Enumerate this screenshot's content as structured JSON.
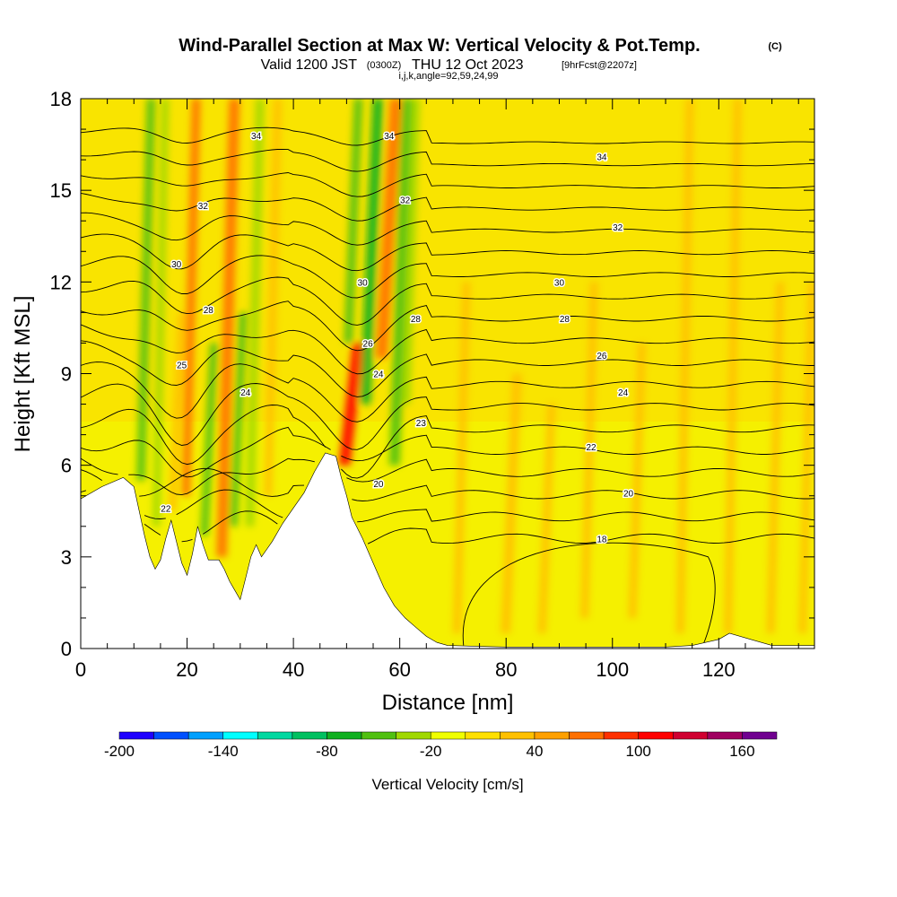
{
  "title": {
    "main": "Wind-Parallel Section at Max W: Vertical Velocity & Pot.Temp.",
    "main_units": "(C)",
    "valid_prefix": "Valid 1200 JST",
    "valid_utc": "(0300Z)",
    "valid_date": "THU 12 Oct 2023",
    "forecast": "[9hrFcst@2207z]",
    "indices": "i,j,k,angle=92,59,24,99"
  },
  "chart_data": {
    "type": "heatmap",
    "xlabel": "Distance [nm]",
    "ylabel": "Height [Kft MSL]",
    "xlim": [
      0,
      138
    ],
    "ylim": [
      0,
      18
    ],
    "x_ticks": [
      0,
      20,
      40,
      60,
      80,
      100,
      120
    ],
    "y_ticks": [
      0,
      3,
      6,
      9,
      12,
      15,
      18
    ],
    "colorbar": {
      "label": "Vertical Velocity [cm/s]",
      "range": [
        -200,
        180
      ],
      "step": 20,
      "tick_labels": [
        -200,
        -140,
        -80,
        -20,
        40,
        100,
        160
      ],
      "colors": [
        "#1e00ff",
        "#0050ff",
        "#00a0ff",
        "#00ffff",
        "#00d8a0",
        "#00c060",
        "#10b020",
        "#50c010",
        "#a0d800",
        "#f0ff00",
        "#ffe000",
        "#ffc000",
        "#ffa000",
        "#ff7000",
        "#ff3000",
        "#ff0000",
        "#d00030",
        "#a00060",
        "#700090"
      ]
    },
    "terrain_profile": [
      [
        0,
        4.9
      ],
      [
        4,
        5.3
      ],
      [
        8,
        5.6
      ],
      [
        10,
        5.3
      ],
      [
        11,
        4.5
      ],
      [
        12,
        3.7
      ],
      [
        13,
        3.0
      ],
      [
        14,
        2.6
      ],
      [
        15,
        2.9
      ],
      [
        16,
        3.6
      ],
      [
        17,
        4.2
      ],
      [
        18,
        3.5
      ],
      [
        19,
        2.8
      ],
      [
        20,
        2.4
      ],
      [
        21,
        3.1
      ],
      [
        22,
        4.0
      ],
      [
        23,
        3.4
      ],
      [
        24,
        2.9
      ],
      [
        26,
        2.9
      ],
      [
        27,
        2.6
      ],
      [
        28,
        2.2
      ],
      [
        29,
        1.9
      ],
      [
        30,
        1.6
      ],
      [
        31,
        2.3
      ],
      [
        32,
        3.0
      ],
      [
        33,
        3.4
      ],
      [
        34,
        3.0
      ],
      [
        36,
        3.5
      ],
      [
        38,
        4.1
      ],
      [
        40,
        4.6
      ],
      [
        42,
        5.1
      ],
      [
        44,
        5.8
      ],
      [
        46,
        6.4
      ],
      [
        48,
        6.3
      ],
      [
        49,
        5.6
      ],
      [
        50,
        5.0
      ],
      [
        51,
        4.3
      ],
      [
        53,
        3.6
      ],
      [
        55,
        2.8
      ],
      [
        57,
        2.0
      ],
      [
        59,
        1.4
      ],
      [
        61,
        1.0
      ],
      [
        63,
        0.7
      ],
      [
        65,
        0.4
      ],
      [
        67,
        0.2
      ],
      [
        69,
        0.1
      ],
      [
        80,
        0.05
      ],
      [
        110,
        0.05
      ],
      [
        115,
        0.1
      ],
      [
        120,
        0.3
      ],
      [
        122,
        0.5
      ],
      [
        126,
        0.3
      ],
      [
        130,
        0.1
      ],
      [
        138,
        0.1
      ]
    ],
    "updraft_bands": [
      {
        "x": 10.5,
        "w": 1.6,
        "y0": 5.5,
        "y1": 18,
        "value": -50
      },
      {
        "x": 13.5,
        "w": 1.4,
        "y0": 4.0,
        "y1": 18,
        "value": -30
      },
      {
        "x": 16.5,
        "w": 1.5,
        "y0": 4.5,
        "y1": 11,
        "value": 30
      },
      {
        "x": 19.0,
        "w": 1.6,
        "y0": 5.0,
        "y1": 18,
        "value": 60
      },
      {
        "x": 22.5,
        "w": 1.5,
        "y0": 3.0,
        "y1": 10,
        "value": -50
      },
      {
        "x": 25.5,
        "w": 2.0,
        "y0": 3.0,
        "y1": 18,
        "value": 70
      },
      {
        "x": 28.0,
        "w": 1.5,
        "y0": 4.0,
        "y1": 11,
        "value": -60
      },
      {
        "x": 31.0,
        "w": 1.6,
        "y0": 4.0,
        "y1": 18,
        "value": -40
      },
      {
        "x": 34.5,
        "w": 1.5,
        "y0": 5.0,
        "y1": 18,
        "value": 30
      },
      {
        "x": 48.5,
        "w": 2.2,
        "y0": 6.0,
        "y1": 10,
        "value": 100
      },
      {
        "x": 49.5,
        "w": 1.6,
        "y0": 10,
        "y1": 18,
        "value": -60
      },
      {
        "x": 52.5,
        "w": 2.0,
        "y0": 8.0,
        "y1": 18,
        "value": -80
      },
      {
        "x": 55.5,
        "w": 2.2,
        "y0": 9.5,
        "y1": 18,
        "value": 70
      },
      {
        "x": 58.0,
        "w": 2.0,
        "y0": 6.0,
        "y1": 18,
        "value": -60
      },
      {
        "x": 60.5,
        "w": 1.5,
        "y0": 8.0,
        "y1": 18,
        "value": -40
      },
      {
        "x": 70.0,
        "w": 1.5,
        "y0": 0.5,
        "y1": 12,
        "value": 30
      },
      {
        "x": 79.0,
        "w": 1.8,
        "y0": 0.5,
        "y1": 9,
        "value": 35
      },
      {
        "x": 86.0,
        "w": 1.5,
        "y0": 0.5,
        "y1": 8,
        "value": 30
      },
      {
        "x": 94.0,
        "w": 1.5,
        "y0": 1.0,
        "y1": 12,
        "value": 30
      },
      {
        "x": 103.0,
        "w": 1.5,
        "y0": 1.0,
        "y1": 10,
        "value": 30
      },
      {
        "x": 112.0,
        "w": 1.5,
        "y0": 0.5,
        "y1": 18,
        "value": 35
      },
      {
        "x": 121.0,
        "w": 1.5,
        "y0": 0.5,
        "y1": 18,
        "value": 30
      },
      {
        "x": 129.0,
        "w": 1.5,
        "y0": 0.5,
        "y1": 12,
        "value": 30
      },
      {
        "x": 135.0,
        "w": 1.5,
        "y0": 0.5,
        "y1": 12,
        "value": 30
      }
    ],
    "isentrope_labels": [
      {
        "text": "34",
        "x": 33,
        "y": 16.8
      },
      {
        "text": "34",
        "x": 58,
        "y": 16.8
      },
      {
        "text": "34",
        "x": 98,
        "y": 16.1
      },
      {
        "text": "32",
        "x": 23,
        "y": 14.5
      },
      {
        "text": "32",
        "x": 61,
        "y": 14.7
      },
      {
        "text": "32",
        "x": 101,
        "y": 13.8
      },
      {
        "text": "30",
        "x": 18,
        "y": 12.6
      },
      {
        "text": "30",
        "x": 53,
        "y": 12.0
      },
      {
        "text": "30",
        "x": 90,
        "y": 12.0
      },
      {
        "text": "28",
        "x": 24,
        "y": 11.1
      },
      {
        "text": "28",
        "x": 63,
        "y": 10.8
      },
      {
        "text": "28",
        "x": 91,
        "y": 10.8
      },
      {
        "text": "26",
        "x": 54,
        "y": 10.0
      },
      {
        "text": "26",
        "x": 98,
        "y": 9.6
      },
      {
        "text": "25",
        "x": 19,
        "y": 9.3
      },
      {
        "text": "24",
        "x": 56,
        "y": 9.0
      },
      {
        "text": "24",
        "x": 31,
        "y": 8.4
      },
      {
        "text": "24",
        "x": 102,
        "y": 8.4
      },
      {
        "text": "23",
        "x": 64,
        "y": 7.4
      },
      {
        "text": "22",
        "x": 96,
        "y": 6.6
      },
      {
        "text": "22",
        "x": 16,
        "y": 4.6
      },
      {
        "text": "20",
        "x": 56,
        "y": 5.4
      },
      {
        "text": "20",
        "x": 103,
        "y": 5.1
      },
      {
        "text": "18",
        "x": 98,
        "y": 3.6
      }
    ]
  }
}
